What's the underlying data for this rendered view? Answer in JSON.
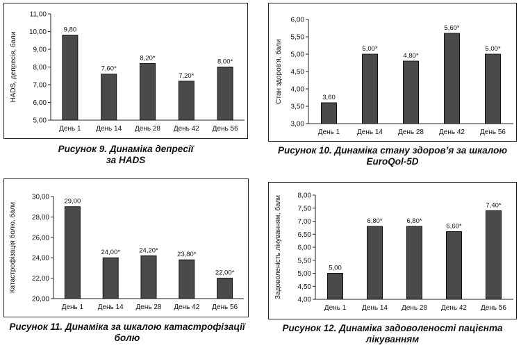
{
  "chart_data": [
    {
      "type": "bar",
      "title": "",
      "caption_line1": "Рисунок 9. Динаміка депресії",
      "caption_line2": "за HADS",
      "ylabel": "HADS, депресія, бали",
      "xlabel": "",
      "categories": [
        "День 1",
        "День 14",
        "День 28",
        "День 42",
        "День 56"
      ],
      "values": [
        9.8,
        7.6,
        8.2,
        7.2,
        8.0
      ],
      "value_labels": [
        "9,80",
        "7,60*",
        "8,20*",
        "7,20*",
        "8,00*"
      ],
      "ylim": [
        5,
        11
      ],
      "yticks": [
        5,
        6,
        7,
        8,
        9,
        10,
        11
      ],
      "ytick_labels": [
        "5,00",
        "6,00",
        "7,00",
        "8,00",
        "9,00",
        "10,00",
        "11,00"
      ],
      "grid": false,
      "bar_color": "#4a4a4a"
    },
    {
      "type": "bar",
      "title": "",
      "caption_line1": "Рисунок 10. Динаміка стану здоров’я за шкалою",
      "caption_line2": "EuroQol-5D",
      "ylabel": "Стан здоров’я, бали",
      "xlabel": "",
      "categories": [
        "День 1",
        "День 14",
        "День 28",
        "День 42",
        "День 56"
      ],
      "values": [
        3.6,
        5.0,
        4.8,
        5.6,
        5.0
      ],
      "value_labels": [
        "3,60",
        "5,00*",
        "4,80*",
        "5,60*",
        "5,00*"
      ],
      "ylim": [
        3,
        6
      ],
      "yticks": [
        3,
        3.5,
        4,
        4.5,
        5,
        5.5,
        6
      ],
      "ytick_labels": [
        "3,00",
        "3,50",
        "4,00",
        "4,50",
        "5,00",
        "5,50",
        "6,00"
      ],
      "grid": false,
      "bar_color": "#4a4a4a"
    },
    {
      "type": "bar",
      "title": "",
      "caption_line1": "Рисунок 11. Динаміка за шкалою катастрофізації",
      "caption_line2": "болю",
      "ylabel": "Катастрофізація болю, бали",
      "xlabel": "",
      "categories": [
        "День 1",
        "День 14",
        "День 28",
        "День 42",
        "День 56"
      ],
      "values": [
        29.0,
        24.0,
        24.2,
        23.8,
        22.0
      ],
      "value_labels": [
        "29,00",
        "24,00*",
        "24,20*",
        "23,80*",
        "22,00*"
      ],
      "ylim": [
        20,
        30
      ],
      "yticks": [
        20,
        22,
        24,
        26,
        28,
        30
      ],
      "ytick_labels": [
        "20,00",
        "22,00",
        "24,00",
        "26,00",
        "28,00",
        "30,00"
      ],
      "grid": false,
      "bar_color": "#4a4a4a"
    },
    {
      "type": "bar",
      "title": "",
      "caption_line1": "Рисунок 12. Динаміка задоволеності пацієнта",
      "caption_line2": "лікуванням",
      "ylabel": "Задоволеність лікуванням, бали",
      "xlabel": "",
      "categories": [
        "День 1",
        "День 14",
        "День 28",
        "День 42",
        "День 56"
      ],
      "values": [
        5.0,
        6.8,
        6.8,
        6.6,
        7.4
      ],
      "value_labels": [
        "5,00",
        "6,80*",
        "6,80*",
        "6,60*",
        "7,40*"
      ],
      "ylim": [
        4,
        8
      ],
      "yticks": [
        4,
        4.5,
        5,
        5.5,
        6,
        6.5,
        7,
        7.5,
        8
      ],
      "ytick_labels": [
        "4,00",
        "4,50",
        "5,00",
        "5,50",
        "6,00",
        "6,50",
        "7,00",
        "7,50",
        "8,00"
      ],
      "grid": false,
      "bar_color": "#4a4a4a"
    }
  ]
}
